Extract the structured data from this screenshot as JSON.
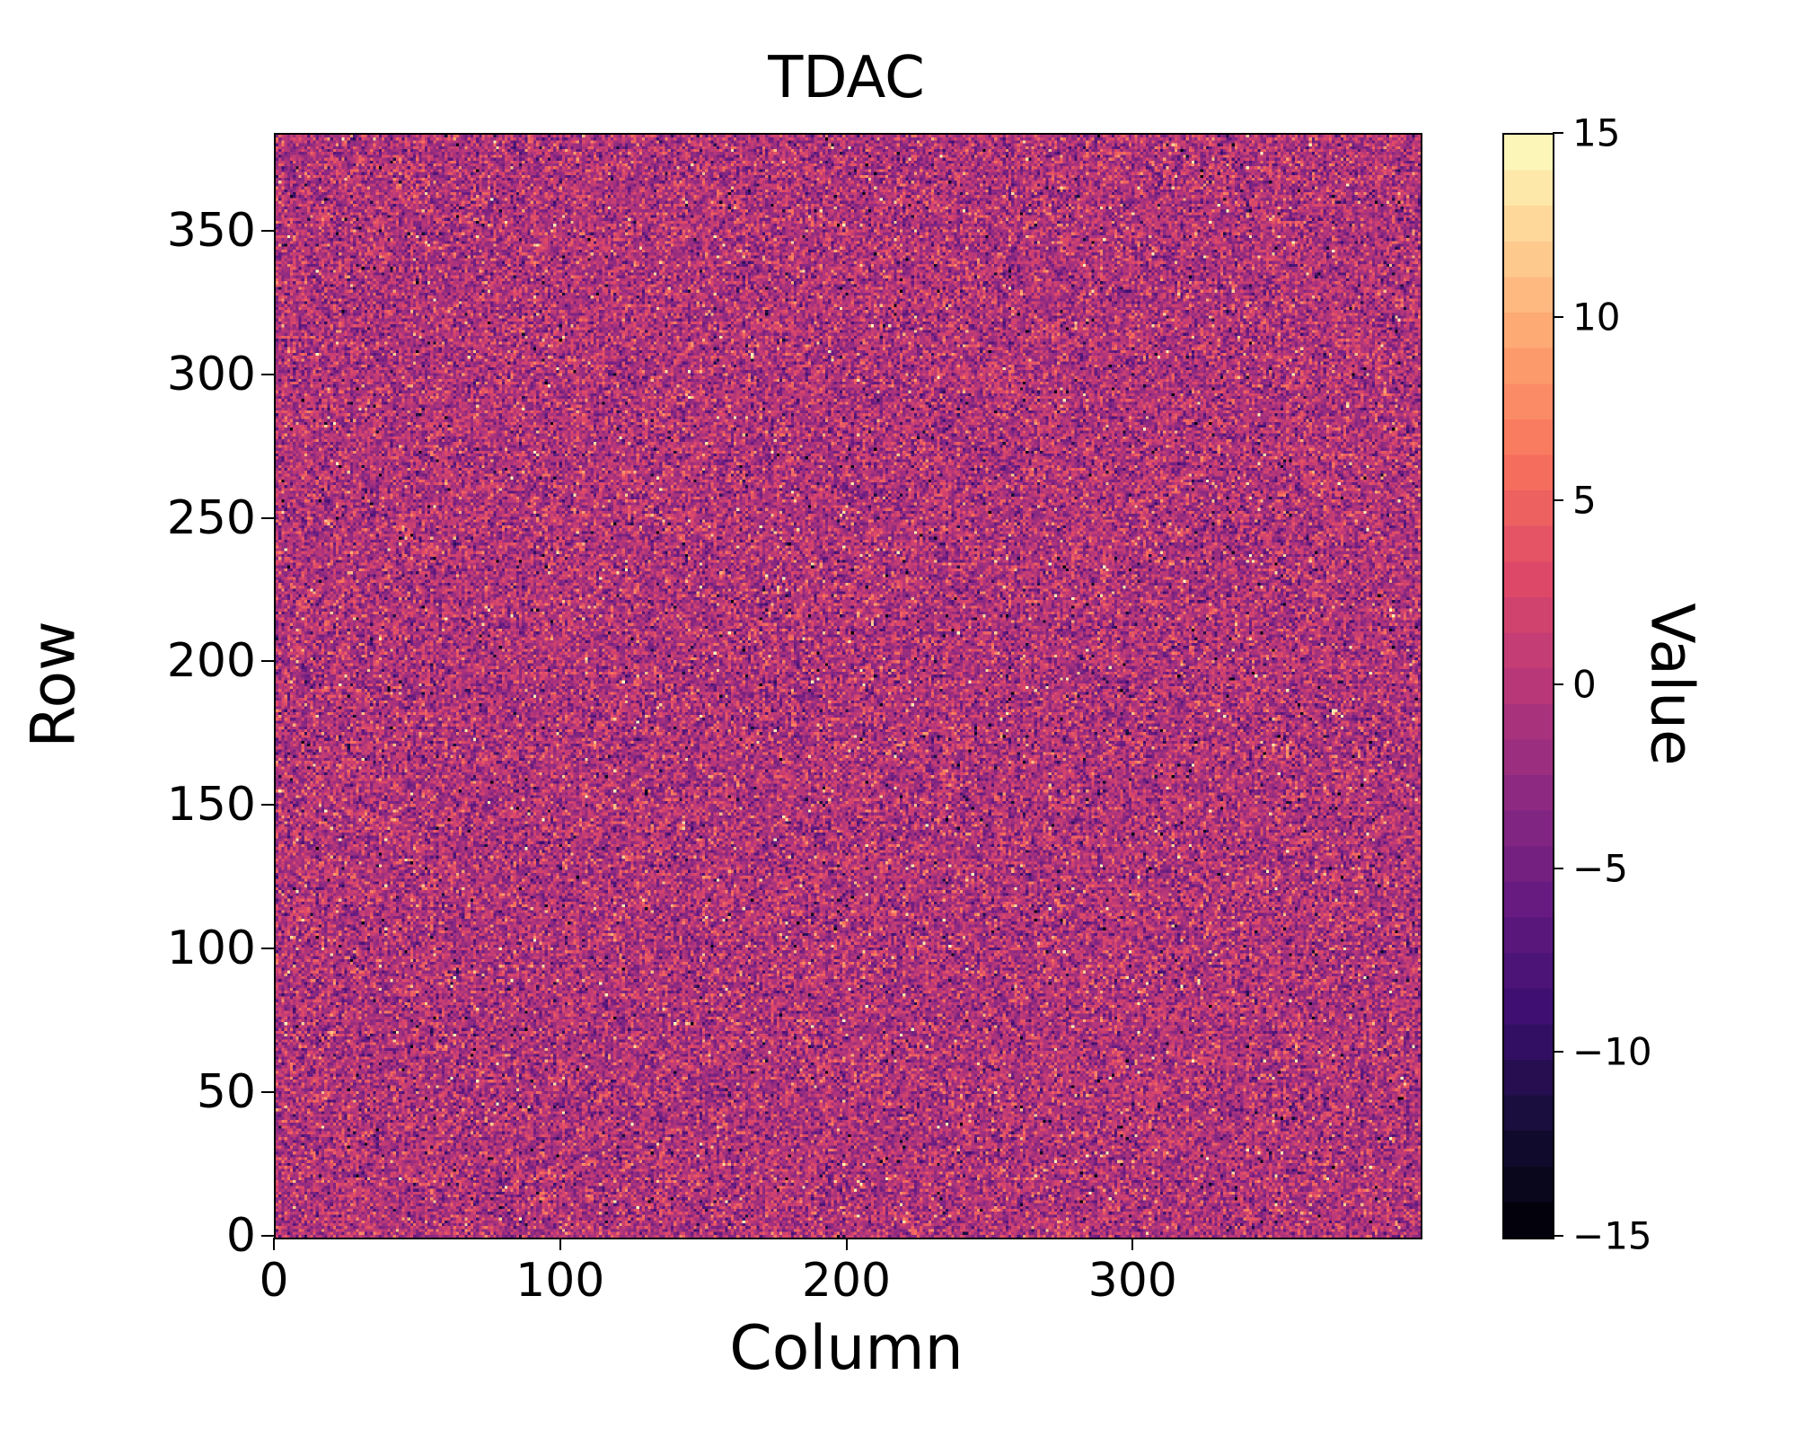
{
  "figure": {
    "background_color": "#ffffff",
    "spine_color": "#000000",
    "tick_color": "#000000"
  },
  "chart_data": {
    "type": "heatmap",
    "title": "TDAC",
    "xlabel": "Column",
    "ylabel": "Row",
    "colorbar_label": "Value",
    "x_range": [
      0,
      400
    ],
    "y_range": [
      0,
      384
    ],
    "value_range": [
      -15,
      15
    ],
    "grid": {
      "cols": 400,
      "rows": 384
    },
    "x_ticks": [
      0,
      100,
      200,
      300
    ],
    "x_tick_labels": [
      "0",
      "100",
      "200",
      "300"
    ],
    "y_ticks": [
      0,
      50,
      100,
      150,
      200,
      250,
      300,
      350
    ],
    "y_tick_labels": [
      "0",
      "50",
      "100",
      "150",
      "200",
      "250",
      "300",
      "350"
    ],
    "colorbar_ticks": [
      15,
      10,
      5,
      0,
      -5,
      -10,
      -15
    ],
    "colorbar_tick_labels": [
      "15",
      "10",
      "5",
      "0",
      "−5",
      "−10",
      "−15"
    ],
    "colormap": "magma",
    "colorbar_levels": 31,
    "distribution": {
      "kind": "integer-gaussian-noise",
      "mean": -0.5,
      "std": 3.4,
      "outlier_fraction": 0.03,
      "clip": [
        -15,
        15
      ]
    },
    "seed": 42,
    "legend": "none",
    "gridlines": "off"
  }
}
